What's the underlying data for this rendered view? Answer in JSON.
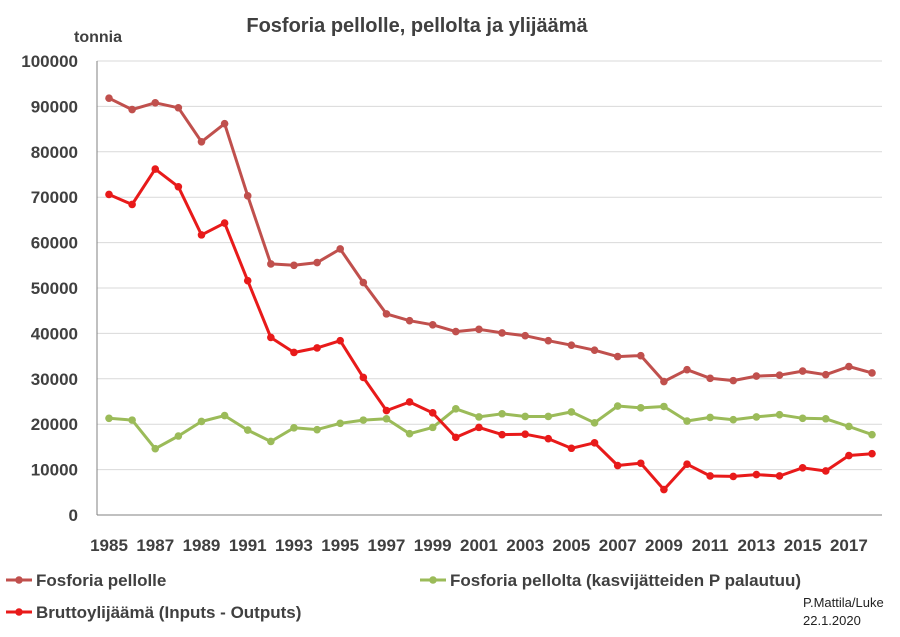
{
  "chart_data": {
    "type": "line",
    "title": "Fosforia pellolle, pellolta ja ylijäämä",
    "ylabel": "tonnia",
    "xlabel": "",
    "ylim": [
      0,
      100000
    ],
    "yticks": [
      "0",
      "10000",
      "20000",
      "30000",
      "40000",
      "50000",
      "60000",
      "70000",
      "80000",
      "90000",
      "100000"
    ],
    "xtick_labels": [
      "1985",
      "1987",
      "1989",
      "1991",
      "1993",
      "1995",
      "1997",
      "1999",
      "2001",
      "2003",
      "2005",
      "2007",
      "2009",
      "2011",
      "2013",
      "2015",
      "2017"
    ],
    "x": [
      1985,
      1986,
      1987,
      1988,
      1989,
      1990,
      1991,
      1992,
      1993,
      1994,
      1995,
      1996,
      1997,
      1998,
      1999,
      2000,
      2001,
      2002,
      2003,
      2004,
      2005,
      2006,
      2007,
      2008,
      2009,
      2010,
      2011,
      2012,
      2013,
      2014,
      2015,
      2016,
      2017,
      2018
    ],
    "series": [
      {
        "name": "Fosforia pellolle",
        "color": "#c0504d",
        "values": [
          91800,
          89300,
          90800,
          89700,
          82200,
          86200,
          70300,
          55300,
          55000,
          55600,
          58600,
          51200,
          44300,
          42800,
          41900,
          40400,
          40900,
          40100,
          39500,
          38400,
          37400,
          36300,
          34900,
          35100,
          29400,
          32000,
          30100,
          29600,
          30600,
          30800,
          31700,
          30900,
          32700,
          31300
        ]
      },
      {
        "name": "Fosforia pellolta (kasvijätteiden P palautuu)",
        "color": "#9bbb59",
        "values": [
          21300,
          20900,
          14600,
          17400,
          20600,
          21900,
          18700,
          16200,
          19200,
          18800,
          20200,
          20900,
          21200,
          17900,
          19300,
          23400,
          21600,
          22300,
          21700,
          21700,
          22700,
          20300,
          24000,
          23600,
          23900,
          20700,
          21500,
          21000,
          21600,
          22100,
          21300,
          21200,
          19500,
          17700
        ]
      },
      {
        "name": "Bruttoylijäämä (Inputs - Outputs)",
        "color": "#e81a1a",
        "values": [
          70600,
          68400,
          76200,
          72300,
          61700,
          64300,
          51600,
          39100,
          35800,
          36800,
          38400,
          30300,
          23000,
          24900,
          22500,
          17100,
          19300,
          17700,
          17800,
          16800,
          14700,
          15900,
          10900,
          11400,
          5600,
          11200,
          8600,
          8500,
          8900,
          8600,
          10400,
          9700,
          13100,
          13500
        ]
      }
    ],
    "legend_position": "bottom"
  },
  "credit": {
    "line1": "P.Mattila/Luke",
    "line2": "22.1.2020"
  }
}
